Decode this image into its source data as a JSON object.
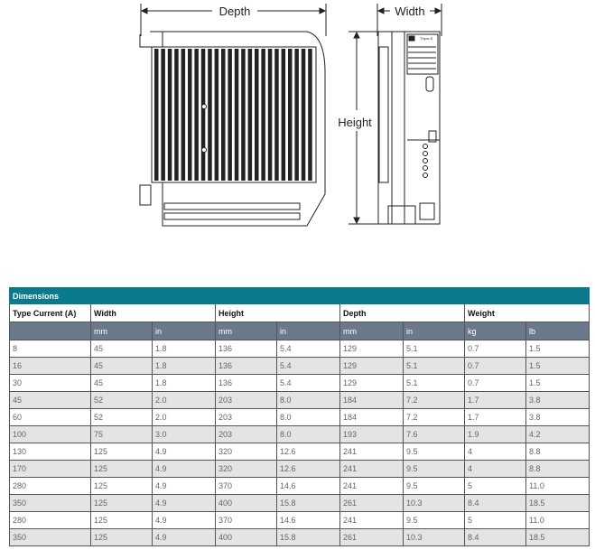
{
  "drawing": {
    "depth_label": "Depth",
    "width_label": "Width",
    "height_label": "Height",
    "logo_text": "Thyro-S"
  },
  "table": {
    "title": "Dimensions",
    "headers": [
      "Type Current (A)",
      "Width",
      "Height",
      "Depth",
      "Weight"
    ],
    "units": [
      "",
      "mm",
      "in",
      "mm",
      "in",
      "mm",
      "in",
      "kg",
      "lb"
    ],
    "rows": [
      [
        "8",
        "45",
        "1.8",
        "136",
        "5.4",
        "129",
        "5.1",
        "0.7",
        "1.5"
      ],
      [
        "16",
        "45",
        "1.8",
        "136",
        "5.4",
        "129",
        "5.1",
        "0.7",
        "1.5"
      ],
      [
        "30",
        "45",
        "1.8",
        "136",
        "5.4",
        "129",
        "5.1",
        "0.7",
        "1.5"
      ],
      [
        "45",
        "52",
        "2.0",
        "203",
        "8.0",
        "184",
        "7.2",
        "1.7",
        "3.8"
      ],
      [
        "60",
        "52",
        "2.0",
        "203",
        "8.0",
        "184",
        "7.2",
        "1.7",
        "3.8"
      ],
      [
        "100",
        "75",
        "3.0",
        "203",
        "8.0",
        "193",
        "7.6",
        "1.9",
        "4.2"
      ],
      [
        "130",
        "125",
        "4.9",
        "320",
        "12.6",
        "241",
        "9.5",
        "4",
        "8.8"
      ],
      [
        "170",
        "125",
        "4.9",
        "320",
        "12.6",
        "241",
        "9.5",
        "4",
        "8.8"
      ],
      [
        "280",
        "125",
        "4.9",
        "370",
        "14.6",
        "241",
        "9.5",
        "5",
        "11.0"
      ],
      [
        "350",
        "125",
        "4.9",
        "400",
        "15.8",
        "261",
        "10.3",
        "8.4",
        "18.5"
      ],
      [
        "280",
        "125",
        "4.9",
        "370",
        "14.6",
        "241",
        "9.5",
        "5",
        "11.0"
      ],
      [
        "350",
        "125",
        "4.9",
        "400",
        "15.8",
        "261",
        "10.3",
        "8.4",
        "18.5"
      ]
    ]
  },
  "colors": {
    "title_bar": "#0a7a8c",
    "units_bar": "#6b7a8a",
    "stripe": "#e4e4e4"
  }
}
